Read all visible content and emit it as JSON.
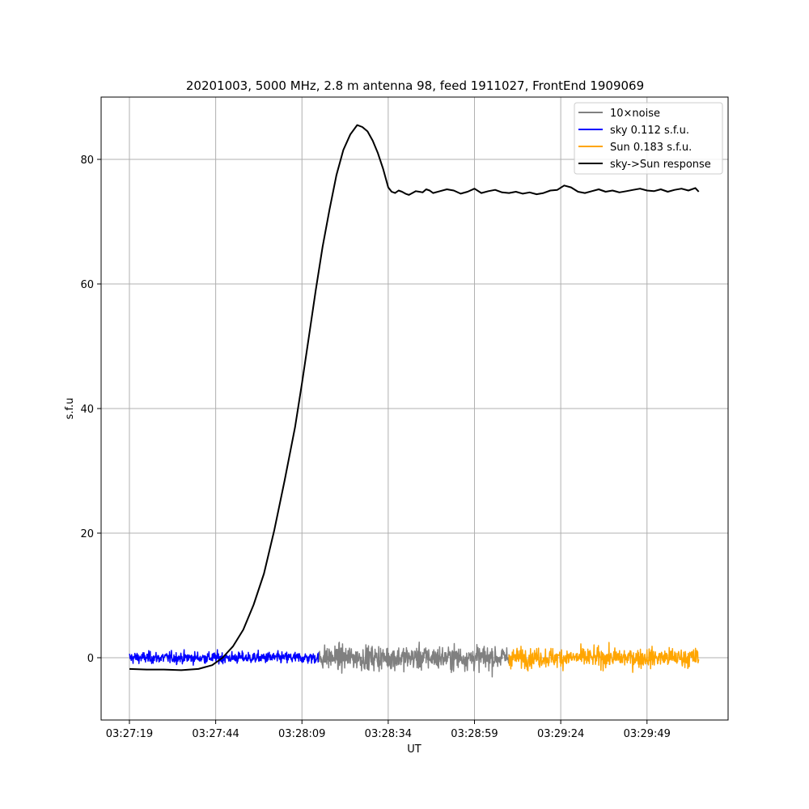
{
  "chart_data": {
    "type": "line",
    "title": "20201003, 5000 MHz, 2.8 m antenna 98, feed 1911027, FrontEnd 1909069",
    "xlabel": "UT",
    "ylabel": "s.f.u",
    "x_tick_labels": [
      "03:27:19",
      "03:27:44",
      "03:28:09",
      "03:28:34",
      "03:28:59",
      "03:29:24",
      "03:29:49"
    ],
    "x_tick_seconds": [
      0,
      25,
      50,
      75,
      100,
      125,
      150
    ],
    "xlim_seconds": [
      -8.2,
      173.5
    ],
    "ylim": [
      -10,
      90
    ],
    "y_ticks": [
      0,
      20,
      40,
      60,
      80
    ],
    "grid": true,
    "legend_placement": "top-right",
    "series": [
      {
        "name": "10×noise",
        "color": "#808080",
        "kind": "noise",
        "x_range_seconds": [
          55,
          110
        ],
        "amplitude": 2.5,
        "x": [
          55,
          60,
          65,
          70,
          75,
          80,
          85,
          90,
          95,
          100,
          105,
          110
        ],
        "y": [
          0.6,
          -1.2,
          2.1,
          -0.8,
          1.5,
          -2.2,
          0.9,
          -0.4,
          1.8,
          -1.6,
          0.3,
          0.0
        ]
      },
      {
        "name": "sky 0.112 s.f.u.",
        "color": "#0000ff",
        "kind": "noise",
        "x_range_seconds": [
          0,
          55
        ],
        "amplitude": 1.2,
        "x": [
          0,
          5,
          10,
          15,
          20,
          25,
          30,
          35,
          40,
          45,
          50,
          55
        ],
        "y": [
          0.5,
          -0.7,
          1.1,
          -0.3,
          0.8,
          -1.0,
          0.4,
          -0.6,
          0.9,
          -0.2,
          0.3,
          0.0
        ]
      },
      {
        "name": "Sun 0.183 s.f.u.",
        "color": "#ffa500",
        "kind": "noise",
        "x_range_seconds": [
          110,
          165
        ],
        "amplitude": 2.0,
        "x": [
          110,
          115,
          120,
          125,
          130,
          135,
          140,
          145,
          150,
          155,
          160,
          165
        ],
        "y": [
          0.4,
          -1.5,
          1.9,
          -0.6,
          1.2,
          -1.8,
          0.7,
          -0.9,
          1.6,
          -1.1,
          0.5,
          -1.5
        ]
      },
      {
        "name": "sky->Sun response",
        "color": "#000000",
        "kind": "line",
        "x": [
          0,
          5,
          10,
          15,
          20,
          24,
          27,
          30,
          33,
          36,
          39,
          42,
          45,
          48,
          50,
          52,
          54,
          56,
          58,
          60,
          62,
          64,
          66,
          67.5,
          69,
          70.5,
          72,
          73.5,
          75,
          76,
          77,
          78,
          79,
          80,
          81,
          82,
          83,
          84,
          85,
          86,
          87,
          88,
          90,
          92,
          94,
          96,
          98,
          100,
          102,
          104,
          106,
          108,
          110,
          112,
          114,
          116,
          118,
          120,
          122,
          124,
          126,
          128,
          130,
          132,
          134,
          136,
          138,
          140,
          142,
          144,
          146,
          148,
          150,
          152,
          154,
          156,
          158,
          160,
          162,
          164,
          165
        ],
        "y": [
          -1.8,
          -1.9,
          -1.9,
          -2.0,
          -1.8,
          -1.2,
          0.0,
          1.8,
          4.5,
          8.5,
          13.5,
          20.5,
          28.5,
          37.0,
          44.0,
          51.5,
          59.0,
          66.0,
          72.0,
          77.5,
          81.5,
          84.0,
          85.5,
          85.2,
          84.5,
          83.0,
          81.0,
          78.5,
          75.5,
          74.8,
          74.6,
          75.0,
          74.8,
          74.5,
          74.3,
          74.6,
          74.9,
          74.8,
          74.7,
          75.2,
          75.0,
          74.6,
          74.9,
          75.2,
          75.0,
          74.5,
          74.8,
          75.3,
          74.6,
          74.9,
          75.1,
          74.7,
          74.6,
          74.8,
          74.5,
          74.7,
          74.4,
          74.6,
          75.0,
          75.1,
          75.8,
          75.5,
          74.8,
          74.6,
          74.9,
          75.2,
          74.8,
          75.0,
          74.7,
          74.9,
          75.1,
          75.3,
          75.0,
          74.9,
          75.2,
          74.8,
          75.1,
          75.3,
          75.0,
          75.4,
          74.8
        ]
      }
    ]
  }
}
